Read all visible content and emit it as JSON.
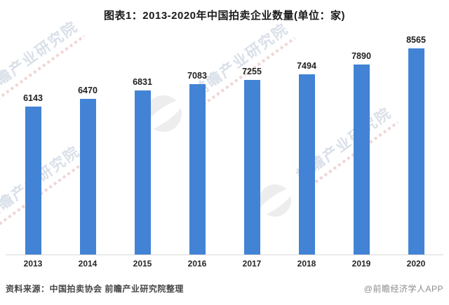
{
  "title": "图表1：2013-2020年中国拍卖企业数量(单位：家)",
  "chart_data": {
    "type": "bar",
    "title": "图表1：2013-2020年中国拍卖企业数量(单位：家)",
    "categories": [
      "2013",
      "2014",
      "2015",
      "2016",
      "2017",
      "2018",
      "2019",
      "2020"
    ],
    "values": [
      6143,
      6470,
      6831,
      7083,
      7255,
      7494,
      7890,
      8565
    ],
    "series_name": "中国拍卖企业数量",
    "unit": "家",
    "xlabel": "",
    "ylabel": "",
    "ylim": [
      0,
      8565
    ],
    "y_axis_shown": false,
    "grid": false,
    "legend": "none",
    "value_labels_shown": true,
    "bar_color": "#4283d5"
  },
  "footer": {
    "source": "资料来源：中国拍卖协会 前瞻产业研究院整理",
    "credit": "@前瞻经济学人APP"
  },
  "watermark": {
    "text": "前瞻产业研究院",
    "logo": "qianzhan-circle-logo"
  }
}
